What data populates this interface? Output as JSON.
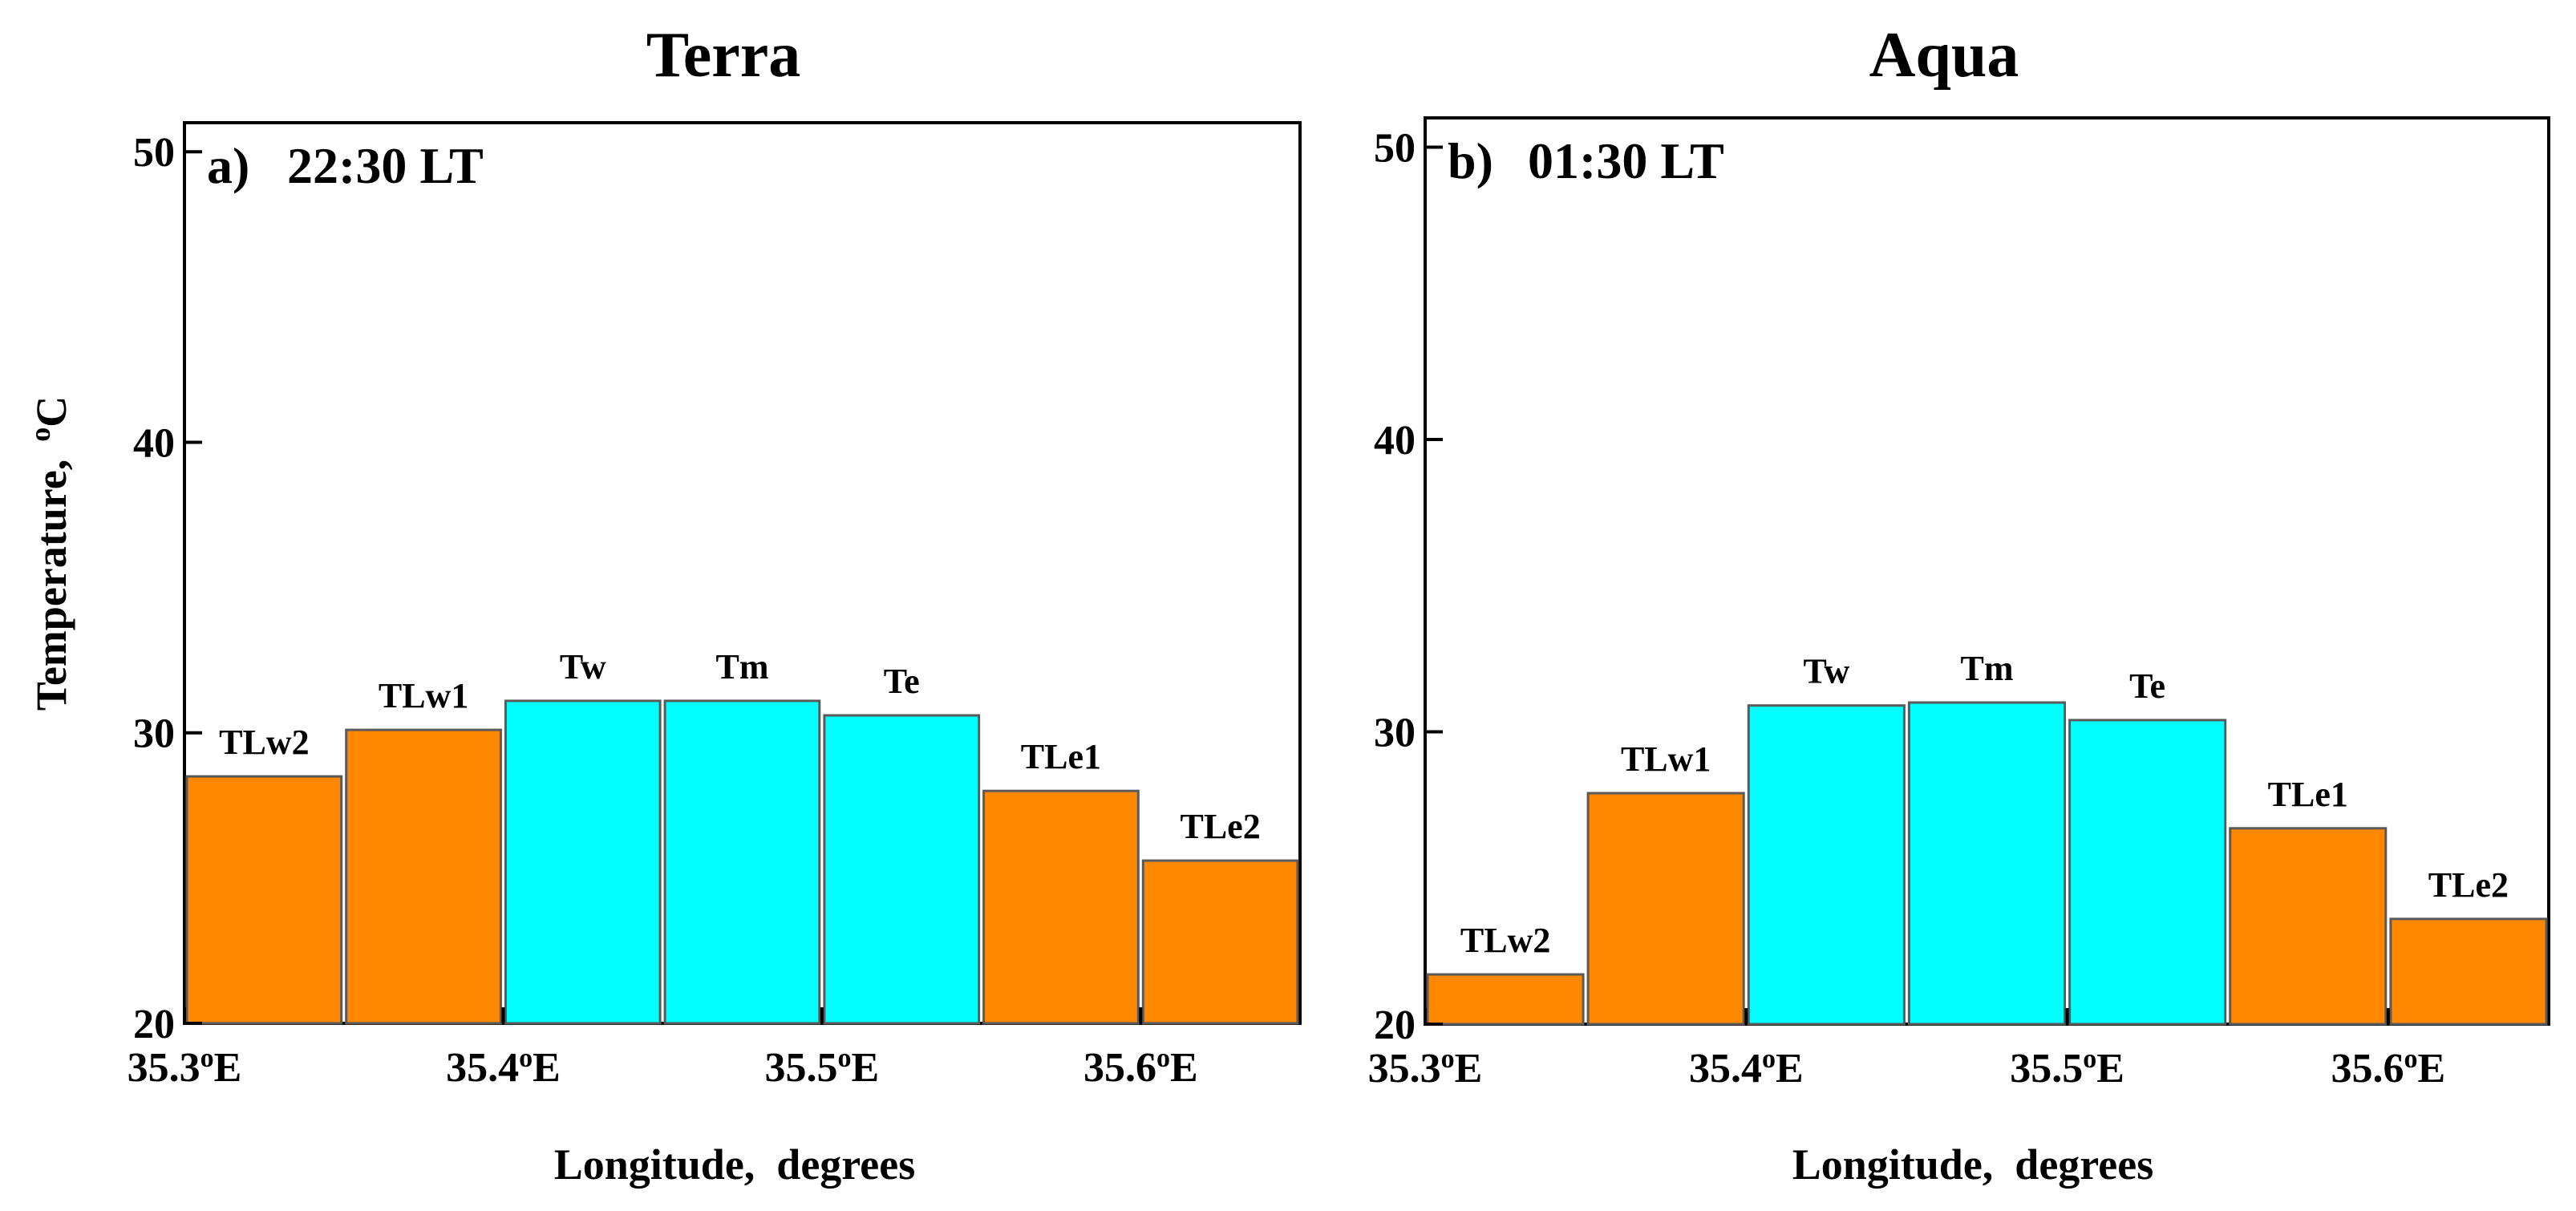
{
  "figure": {
    "y_label": "Temperature,",
    "y_label_unit": "°C"
  },
  "chart_data": [
    {
      "type": "bar",
      "title": "Terra",
      "panel_label": "a)",
      "time_label": "22:30 LT",
      "xlabel": "Longitude,  degrees",
      "ylabel": "Temperature, °C",
      "xlim": [
        35.3,
        35.65
      ],
      "ylim": [
        20,
        51
      ],
      "yticks": [
        20,
        30,
        40,
        50
      ],
      "ytick_labels": [
        "20",
        "30",
        "40",
        "50"
      ],
      "xticks": [
        35.3,
        35.4,
        35.5,
        35.6
      ],
      "xtick_main": [
        "35.3",
        "35.4",
        "35.5",
        "35.6"
      ],
      "xtick_sup": "o",
      "xtick_suffix": "E",
      "categories": [
        "TLw2",
        "TLw1",
        "Tw",
        "Tm",
        "Te",
        "TLe1",
        "TLe2"
      ],
      "values": [
        28.5,
        30.1,
        31.1,
        31.1,
        30.6,
        28.0,
        25.6
      ],
      "colors": [
        "#ff8800",
        "#ff8800",
        "#00ffff",
        "#00ffff",
        "#00ffff",
        "#ff8800",
        "#ff8800"
      ]
    },
    {
      "type": "bar",
      "title": "Aqua",
      "panel_label": "b)",
      "time_label": "01:30 LT",
      "xlabel": "Longitude,  degrees",
      "ylabel": "",
      "xlim": [
        35.3,
        35.65
      ],
      "ylim": [
        20,
        51
      ],
      "yticks": [
        20,
        30,
        40,
        50
      ],
      "ytick_labels": [
        "20",
        "30",
        "40",
        "50"
      ],
      "xticks": [
        35.3,
        35.4,
        35.5,
        35.6
      ],
      "xtick_main": [
        "35.3",
        "35.4",
        "35.5",
        "35.6"
      ],
      "xtick_sup": "o",
      "xtick_suffix": "E",
      "categories": [
        "TLw2",
        "TLw1",
        "Tw",
        "Tm",
        "Te",
        "TLe1",
        "TLe2"
      ],
      "values": [
        21.7,
        27.9,
        30.9,
        31.0,
        30.4,
        26.7,
        23.6
      ],
      "colors": [
        "#ff8800",
        "#ff8800",
        "#00ffff",
        "#00ffff",
        "#00ffff",
        "#ff8800",
        "#ff8800"
      ]
    }
  ]
}
